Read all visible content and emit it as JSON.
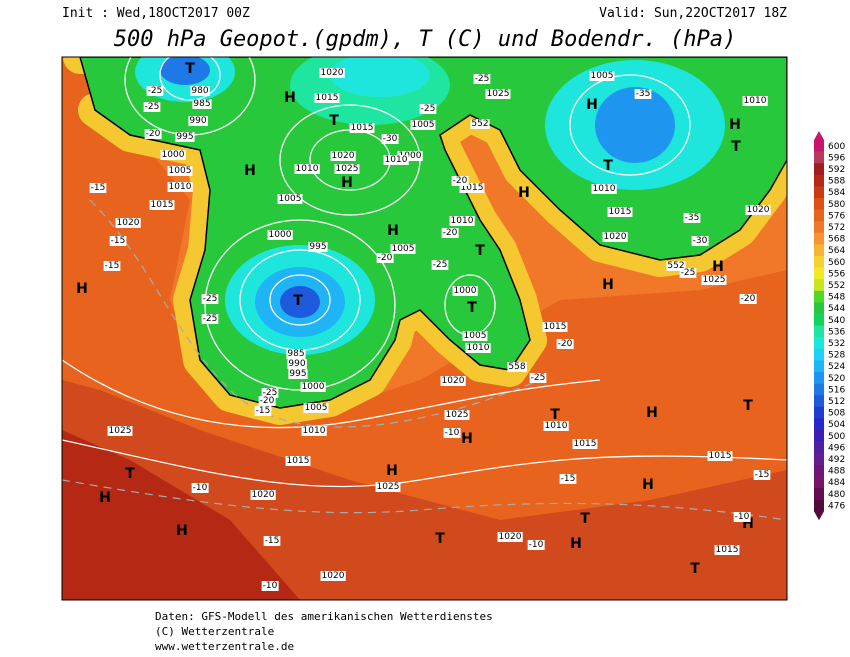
{
  "header": {
    "init": "Init : Wed,18OCT2017 00Z",
    "valid": "Valid: Sun,22OCT2017 18Z",
    "title": "500 hPa Geopot.(gpdm), T (C) und Bodendr. (hPa)"
  },
  "legend": {
    "values": [
      600,
      596,
      592,
      588,
      584,
      580,
      576,
      572,
      568,
      564,
      560,
      556,
      552,
      548,
      544,
      540,
      536,
      532,
      528,
      524,
      520,
      516,
      512,
      508,
      504,
      500,
      496,
      492,
      488,
      484,
      480,
      476
    ],
    "colors": [
      "#c8166e",
      "#b43c5a",
      "#a01e1e",
      "#b42814",
      "#c83c14",
      "#dc5014",
      "#e6641e",
      "#f07828",
      "#f59632",
      "#f5b432",
      "#f5d232",
      "#f0eb28",
      "#c8e61e",
      "#50d728",
      "#28c83c",
      "#14d25a",
      "#1ee6a0",
      "#1ee6dc",
      "#1ed2f5",
      "#1eb4f5",
      "#1e96f0",
      "#1e78e6",
      "#1e5adc",
      "#1e3cd2",
      "#2828c8",
      "#3c1eb4",
      "#501ea0",
      "#641e8c",
      "#6e1478",
      "#781464",
      "#640a50",
      "#500a3c"
    ]
  },
  "map_labels": [
    "T",
    "980",
    "985",
    "990",
    "995",
    "1000",
    "1005",
    "1010",
    "1015",
    "1020",
    "H",
    "H",
    "1020",
    "1015",
    "T",
    "1015",
    "1020",
    "1025",
    "H",
    "1010",
    "1005",
    "1000",
    "H",
    "995",
    "T",
    "985",
    "990",
    "995",
    "1000",
    "1005",
    "1010",
    "1015",
    "1020",
    "1025",
    "H",
    "T",
    "H",
    "H",
    "1025",
    "1020",
    "T",
    "-10",
    "-15",
    "-10",
    "-25",
    "-25",
    "-20",
    "-15",
    "-15",
    "-15",
    "-25",
    "-25",
    "-25",
    "-20",
    "-15",
    "1005",
    "1000",
    "-25",
    "-30",
    "552",
    "-25",
    "1025",
    "1005",
    "H",
    "-35",
    "T",
    "1010",
    "1015",
    "1020",
    "-35",
    "-30",
    "H",
    "T",
    "1010",
    "1020",
    "H",
    "1025",
    "552",
    "-25",
    "-20",
    "H",
    "1015",
    "-20",
    "1010",
    "-20",
    "T",
    "1000",
    "T",
    "1005",
    "1010",
    "1015",
    "-20",
    "-25",
    "1020",
    "1025",
    "H",
    "-10",
    "T",
    "1010",
    "1015",
    "H",
    "T",
    "1015",
    "-15",
    "H",
    "T",
    "H",
    "1020",
    "-10",
    "T",
    "1015",
    "H",
    "-10",
    "-15",
    "1010",
    "H",
    "1005",
    "-20",
    "-25",
    "H",
    "558"
  ],
  "footer": [
    "Daten: GFS-Modell des amerikanischen Wetterdienstes",
    "(C) Wetterzentrale",
    "www.wetterzentrale.de"
  ]
}
